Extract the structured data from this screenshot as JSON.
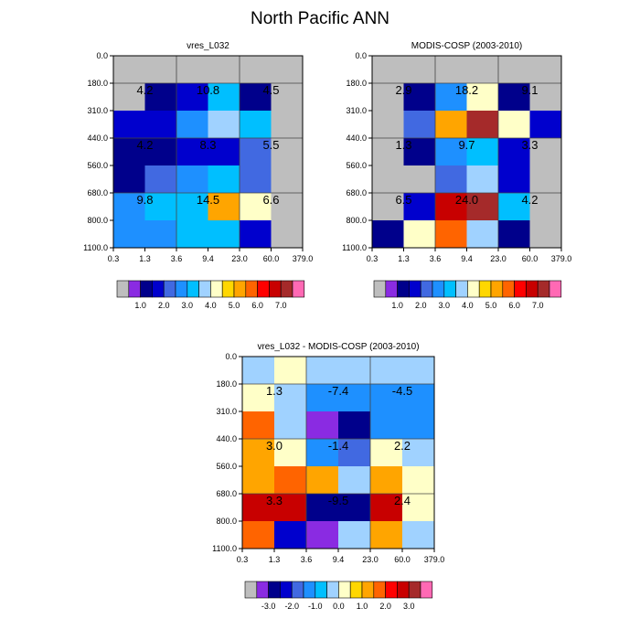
{
  "title": "North Pacific ANN",
  "grid_edges": {
    "x_ticks": [
      "0.3",
      "1.3",
      "3.6",
      "9.4",
      "23.0",
      "60.0",
      "379.0"
    ],
    "y_ticks": [
      "0.0",
      "180.0",
      "310.0",
      "440.0",
      "560.0",
      "680.0",
      "800.0",
      "1100.0"
    ]
  },
  "chart_data": [
    {
      "type": "heatmap",
      "title": "vres_L032",
      "x_edges": [
        "0.3",
        "1.3",
        "3.6",
        "9.4",
        "23.0",
        "60.0",
        "379.0"
      ],
      "y_edges": [
        "0.0",
        "180.0",
        "310.0",
        "440.0",
        "560.0",
        "680.0",
        "800.0",
        "1100.0"
      ],
      "cells": [
        [
          "0.0",
          "0.0",
          "0.0",
          "0.0",
          "0.0",
          "0.0"
        ],
        [
          "0.0",
          "1.0",
          "1.5",
          "3.0",
          "1.0",
          "0.0"
        ],
        [
          "1.5",
          "1.5",
          "2.5",
          "3.5",
          "3.0",
          "0.0"
        ],
        [
          "1.0",
          "1.0",
          "1.5",
          "1.5",
          "2.0",
          "0.0"
        ],
        [
          "1.0",
          "2.0",
          "2.5",
          "3.0",
          "2.0",
          "0.0"
        ],
        [
          "2.5",
          "3.0",
          "3.0",
          "5.0",
          "4.0",
          "0.0"
        ],
        [
          "2.5",
          "2.5",
          "3.0",
          "3.0",
          "1.5",
          "0.0"
        ]
      ],
      "annotations": [
        "4.2",
        "10.8",
        "4.5",
        "4.2",
        "8.3",
        "5.5",
        "9.8",
        "14.5",
        "6.6"
      ],
      "colorbar": {
        "labels": [
          "1.0",
          "2.0",
          "3.0",
          "4.0",
          "5.0",
          "6.0",
          "7.0"
        ]
      }
    },
    {
      "type": "heatmap",
      "title": "MODIS-COSP (2003-2010)",
      "x_edges": [
        "0.3",
        "1.3",
        "3.6",
        "9.4",
        "23.0",
        "60.0",
        "379.0"
      ],
      "y_edges": [
        "0.0",
        "180.0",
        "310.0",
        "440.0",
        "560.0",
        "680.0",
        "800.0",
        "1100.0"
      ],
      "cells": [
        [
          "0.0",
          "0.0",
          "0.0",
          "0.0",
          "0.0",
          "0.0"
        ],
        [
          "0.0",
          "1.0",
          "2.5",
          "4.0",
          "1.0",
          "0.0"
        ],
        [
          "0.0",
          "2.0",
          "5.0",
          "7.0",
          "4.0",
          "1.5"
        ],
        [
          "0.0",
          "1.0",
          "2.5",
          "3.0",
          "1.5",
          "0.0"
        ],
        [
          "0.0",
          "0.0",
          "2.0",
          "3.5",
          "1.5",
          "0.0"
        ],
        [
          "0.0",
          "1.5",
          "6.5",
          "7.5",
          "3.0",
          "0.0"
        ],
        [
          "1.0",
          "4.0",
          "5.5",
          "3.5",
          "1.0",
          "0.0"
        ]
      ],
      "annotations": [
        "2.9",
        "18.2",
        "9.1",
        "1.3",
        "9.7",
        "3.3",
        "6.5",
        "24.0",
        "4.2"
      ],
      "colorbar": {
        "labels": [
          "1.0",
          "2.0",
          "3.0",
          "4.0",
          "5.0",
          "6.0",
          "7.0"
        ]
      }
    },
    {
      "type": "heatmap",
      "title": "vres_L032 - MODIS-COSP (2003-2010)",
      "x_edges": [
        "0.3",
        "1.3",
        "3.6",
        "9.4",
        "23.0",
        "60.0",
        "379.0"
      ],
      "y_edges": [
        "0.0",
        "180.0",
        "310.0",
        "440.0",
        "560.0",
        "680.0",
        "800.0",
        "1100.0"
      ],
      "cells": [
        [
          "-0.5",
          "0.2",
          "-0.5",
          "-0.5",
          "-0.5",
          "-0.5"
        ],
        [
          "0.2",
          "-0.5",
          "-1.5",
          "-1.5",
          "-1.5",
          "-1.5"
        ],
        [
          "1.5",
          "-0.5",
          "-3.5",
          "-3.0",
          "-1.5",
          "-1.5"
        ],
        [
          "1.0",
          "0.2",
          "-1.5",
          "-2.0",
          "0.2",
          "-0.5"
        ],
        [
          "1.0",
          "1.5",
          "1.0",
          "-0.5",
          "1.0",
          "0.2"
        ],
        [
          "2.5",
          "2.5",
          "-3.0",
          "-3.0",
          "2.5",
          "0.2"
        ],
        [
          "1.5",
          "-2.5",
          "-3.5",
          "-0.5",
          "1.0",
          "-0.5"
        ]
      ],
      "annotations": [
        "1.3",
        "-7.4",
        "-4.5",
        "3.0",
        "-1.4",
        "2.2",
        "3.3",
        "-9.5",
        "2.4"
      ],
      "colorbar": {
        "labels": [
          "-3.0",
          "-2.0",
          "-1.0",
          "0.0",
          "1.0",
          "2.0",
          "3.0"
        ]
      }
    }
  ],
  "colors": {
    "missing": "#bebebe",
    "abs_scale": [
      "#bebebe",
      "#8a2be2",
      "#00008b",
      "#0000cd",
      "#4169e1",
      "#1e90ff",
      "#00bfff",
      "#a0d2ff",
      "#ffffc8",
      "#ffd700",
      "#ffa500",
      "#ff6400",
      "#ff0000",
      "#c80000",
      "#a52a2a",
      "#ff69b4"
    ],
    "diff_scale": [
      "#bebebe",
      "#8a2be2",
      "#00008b",
      "#0000cd",
      "#4169e1",
      "#1e90ff",
      "#00bfff",
      "#a0d2ff",
      "#ffffc8",
      "#ffd700",
      "#ffa500",
      "#ff6400",
      "#ff0000",
      "#c80000",
      "#a52a2a",
      "#ff69b4"
    ]
  }
}
